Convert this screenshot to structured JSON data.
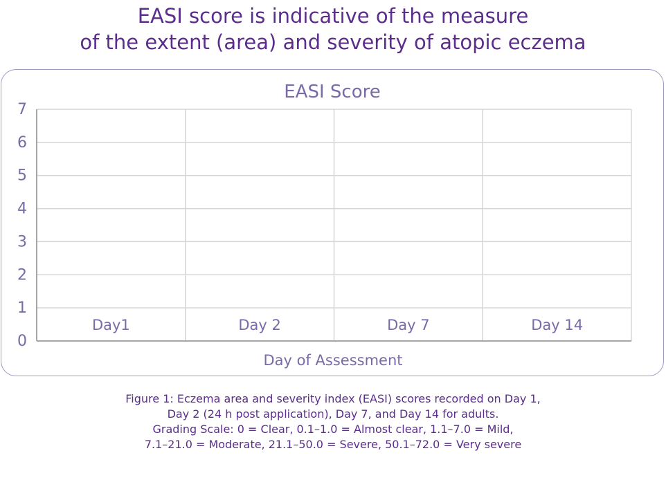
{
  "headline": {
    "line1": "EASI score is indicative of the measure",
    "line2": "of the extent (area) and severity of atopic eczema"
  },
  "chart_data": {
    "type": "bar",
    "title": "EASI Score",
    "xlabel": "Day of Assessment",
    "ylabel": "",
    "categories": [
      "Day1",
      "Day 2",
      "Day 7",
      "Day 14"
    ],
    "yticks": [
      "0",
      "1",
      "2",
      "3",
      "4",
      "5",
      "6",
      "7"
    ],
    "ylim": [
      0,
      7
    ],
    "grid": true,
    "series": []
  },
  "caption": {
    "line1": "Figure 1: Eczema area and severity index (EASI) scores recorded on  Day 1,",
    "line2": "Day 2 (24 h post application), Day 7, and Day 14 for adults.",
    "line3": "Grading Scale: 0 = Clear, 0.1–1.0 = Almost clear, 1.1–7.0 = Mild,",
    "line4": "7.1–21.0 = Moderate, 21.1–50.0 = Severe, 50.1–72.0 = Very severe"
  },
  "colors": {
    "headline": "#5b2d8c",
    "chart_text": "#7a6aa8",
    "grid": "#d5d5d5",
    "axis": "#8a8a8a",
    "border": "#a296c2"
  }
}
